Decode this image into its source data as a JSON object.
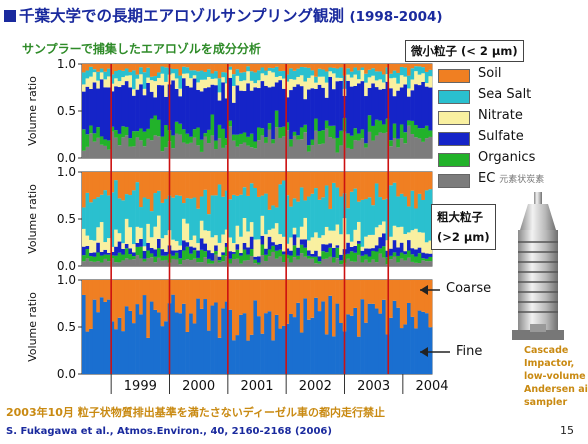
{
  "title": {
    "main": "千葉大学での長期エアロゾルサンプリング観測",
    "years": "(1998-2004)"
  },
  "subtitle": "サンプラーで捕集したエアロゾルを成分分析",
  "fine_label": "微小粒子 (< 2 μm)",
  "coarse_label_line1": "粗大粒子",
  "coarse_label_line2": "(>2 μm)",
  "legend": [
    {
      "name": "Soil",
      "color": "#f07f22",
      "sub": ""
    },
    {
      "name": "Sea Salt",
      "color": "#2ac0cf",
      "sub": ""
    },
    {
      "name": "Nitrate",
      "color": "#f9f0a0",
      "sub": ""
    },
    {
      "name": "Sulfate",
      "color": "#1524c8",
      "sub": ""
    },
    {
      "name": "Organics",
      "color": "#22b22a",
      "sub": ""
    },
    {
      "name": "EC",
      "color": "#7c7c7c",
      "sub": "元素状炭素"
    }
  ],
  "arrows": {
    "coarse": "Coarse",
    "fine": "Fine"
  },
  "sampler_caption": [
    "Cascade",
    "Impactor,",
    "low-volume",
    "Andersen ai",
    "sampler"
  ],
  "note": "2003年10月 粒子状物質排出基準を満たさないディーゼル車の都内走行禁止",
  "citation": "S. Fukagawa et al., Atmos.Environ., 40, 2160-2168 (2006)",
  "page_number": "15",
  "colors": {
    "marker": "#cc1111",
    "coarse_fill": "#f07f22",
    "fine_fill": "#1a6fd0"
  },
  "chart_data": [
    {
      "type": "bar",
      "stacked": true,
      "panel": "fine",
      "ylabel": "Volume ratio",
      "ylim": [
        0,
        1
      ],
      "yticks": [
        "0.0",
        "0.5",
        "1.0"
      ],
      "components_bottom_to_top": [
        "EC",
        "Organics",
        "Sulfate",
        "Nitrate",
        "Sea Salt",
        "Soil"
      ],
      "typical_fractions": {
        "EC": 0.18,
        "Organics": 0.12,
        "Sulfate": 0.45,
        "Nitrate": 0.1,
        "Sea Salt": 0.08,
        "Soil": 0.07
      }
    },
    {
      "type": "bar",
      "stacked": true,
      "panel": "coarse",
      "ylabel": "Volume ratio",
      "ylim": [
        0,
        1
      ],
      "yticks": [
        "0.0",
        "0.5",
        "1.0"
      ],
      "components_bottom_to_top": [
        "EC",
        "Organics",
        "Sulfate",
        "Nitrate",
        "Sea Salt",
        "Soil"
      ],
      "typical_fractions": {
        "EC": 0.06,
        "Organics": 0.07,
        "Sulfate": 0.07,
        "Nitrate": 0.15,
        "Sea Salt": 0.4,
        "Soil": 0.25
      }
    },
    {
      "type": "bar",
      "stacked": true,
      "panel": "coarse_vs_fine",
      "ylabel": "Volume ratio",
      "ylim": [
        0,
        1
      ],
      "yticks": [
        "0.0",
        "0.5",
        "1.0"
      ],
      "series": [
        {
          "name": "Fine"
        },
        {
          "name": "Coarse"
        }
      ],
      "typical_fine_fraction": 0.6
    }
  ],
  "x_axis": {
    "year_labels": [
      "1999",
      "2000",
      "2001",
      "2002",
      "2003",
      "2004"
    ],
    "red_marker_positions_years": [
      1999.0,
      2000.0,
      2001.0,
      2002.0,
      2003.0,
      2003.75
    ]
  }
}
